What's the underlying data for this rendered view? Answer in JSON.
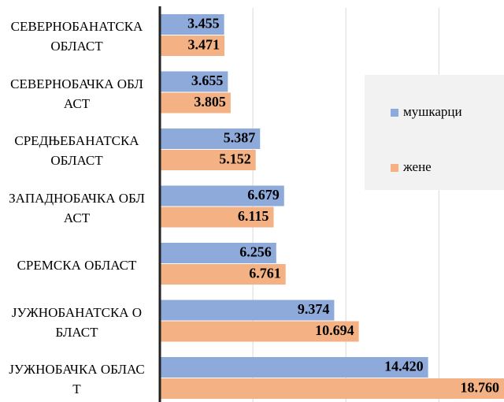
{
  "chart_data": {
    "type": "hbar",
    "categories": [
      "СЕВЕРНОБАНАТСКА ОБЛАСТ",
      "СЕВЕРНОБАЧКА ОБЛАСТ",
      "СРЕДЊЕБАНАТСКА ОБЛАСТ",
      "ЗАПАДНОБАЧКА ОБЛАСТ",
      "СРЕМСКА ОБЛАСТ",
      "ЈУЖНОБАНАТСКА ОБЛАСТ",
      "ЈУЖНОБАЧКА ОБЛАСТ"
    ],
    "series": [
      {
        "name": "мушкарци",
        "color": "#8eaadb",
        "values": [
          3455,
          3655,
          5387,
          6679,
          6256,
          9374,
          14420
        ],
        "value_labels": [
          "3.455",
          "3.655",
          "5.387",
          "6.679",
          "6.256",
          "9.374",
          "14.420"
        ]
      },
      {
        "name": "жене",
        "color": "#f4b183",
        "values": [
          3471,
          3805,
          5152,
          6115,
          6761,
          10694,
          18760
        ],
        "value_labels": [
          "3.471",
          "3.805",
          "5.152",
          "6.115",
          "6.761",
          "10.694",
          "18.760"
        ]
      }
    ],
    "xlim": [
      0,
      18500
    ],
    "xticks": [
      0,
      5000,
      10000,
      15000
    ],
    "grid": true,
    "legend": "right"
  }
}
